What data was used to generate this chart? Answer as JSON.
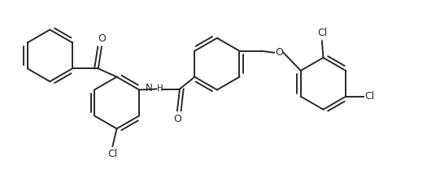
{
  "bg_color": "#ffffff",
  "line_color": "#2a2a2a",
  "line_width": 1.4,
  "figsize": [
    5.41,
    2.19
  ],
  "dpi": 100,
  "xlim": [
    0,
    10.5
  ],
  "ylim": [
    0,
    4.1
  ]
}
